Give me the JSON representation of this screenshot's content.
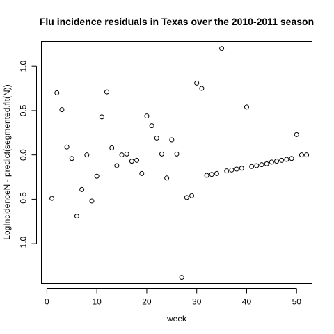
{
  "chart_data": {
    "type": "scatter",
    "title": "Flu incidence residuals in Texas over the 2010-2011 season",
    "xlabel": "week",
    "ylabel": "LogIncidenceN - predict(segmented.fit(N))",
    "xlim": [
      -1.1,
      53.1
    ],
    "ylim": [
      -1.45,
      1.28
    ],
    "x_ticks": [
      0,
      10,
      20,
      30,
      40,
      50
    ],
    "y_ticks": [
      -1.0,
      -0.5,
      0.0,
      0.5,
      1.0
    ],
    "y_tick_labels": [
      "-1.0",
      "-0.5",
      "0.0",
      "0.5",
      "1.0"
    ],
    "grid": false,
    "marker": "open-circle",
    "points": [
      {
        "x": 1,
        "y": -0.49
      },
      {
        "x": 2,
        "y": 0.7
      },
      {
        "x": 3,
        "y": 0.51
      },
      {
        "x": 4,
        "y": 0.09
      },
      {
        "x": 5,
        "y": -0.04
      },
      {
        "x": 6,
        "y": -0.69
      },
      {
        "x": 7,
        "y": -0.39
      },
      {
        "x": 8,
        "y": 0.0
      },
      {
        "x": 9,
        "y": -0.52
      },
      {
        "x": 10,
        "y": -0.24
      },
      {
        "x": 11,
        "y": 0.43
      },
      {
        "x": 12,
        "y": 0.71
      },
      {
        "x": 13,
        "y": 0.08
      },
      {
        "x": 14,
        "y": -0.12
      },
      {
        "x": 15,
        "y": 0.0
      },
      {
        "x": 16,
        "y": 0.01
      },
      {
        "x": 17,
        "y": -0.07
      },
      {
        "x": 18,
        "y": -0.06
      },
      {
        "x": 19,
        "y": -0.21
      },
      {
        "x": 20,
        "y": 0.44
      },
      {
        "x": 21,
        "y": 0.33
      },
      {
        "x": 22,
        "y": 0.19
      },
      {
        "x": 23,
        "y": 0.01
      },
      {
        "x": 24,
        "y": -0.26
      },
      {
        "x": 25,
        "y": 0.17
      },
      {
        "x": 26,
        "y": 0.01
      },
      {
        "x": 27,
        "y": -1.38
      },
      {
        "x": 28,
        "y": -0.48
      },
      {
        "x": 29,
        "y": -0.46
      },
      {
        "x": 30,
        "y": 0.81
      },
      {
        "x": 31,
        "y": 0.75
      },
      {
        "x": 32,
        "y": -0.23
      },
      {
        "x": 33,
        "y": -0.22
      },
      {
        "x": 34,
        "y": -0.21
      },
      {
        "x": 35,
        "y": 1.2
      },
      {
        "x": 36,
        "y": -0.18
      },
      {
        "x": 37,
        "y": -0.17
      },
      {
        "x": 38,
        "y": -0.16
      },
      {
        "x": 39,
        "y": -0.15
      },
      {
        "x": 40,
        "y": 0.54
      },
      {
        "x": 41,
        "y": -0.13
      },
      {
        "x": 42,
        "y": -0.12
      },
      {
        "x": 43,
        "y": -0.11
      },
      {
        "x": 44,
        "y": -0.1
      },
      {
        "x": 45,
        "y": -0.08
      },
      {
        "x": 46,
        "y": -0.07
      },
      {
        "x": 47,
        "y": -0.06
      },
      {
        "x": 48,
        "y": -0.05
      },
      {
        "x": 49,
        "y": -0.04
      },
      {
        "x": 50,
        "y": 0.23
      },
      {
        "x": 51,
        "y": 0.0
      },
      {
        "x": 52,
        "y": 0.0
      }
    ]
  }
}
